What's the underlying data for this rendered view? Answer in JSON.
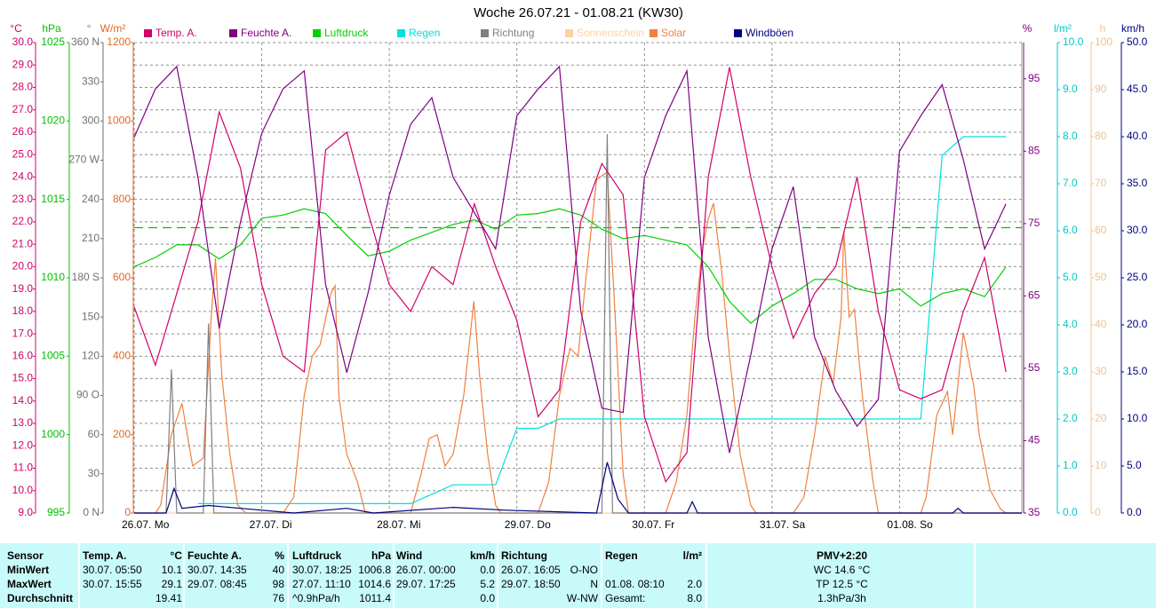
{
  "chart_data": {
    "type": "line",
    "title": "Woche 26.07.21 - 01.08.21 (KW30)",
    "xlim": [
      0,
      167
    ],
    "xticks": [
      {
        "value": 0,
        "label": "26.07. Mo"
      },
      {
        "value": 24,
        "label": "27.07. Di"
      },
      {
        "value": 48,
        "label": "28.07. Mi"
      },
      {
        "value": 72,
        "label": "29.07. Do"
      },
      {
        "value": 96,
        "label": "30.07. Fr"
      },
      {
        "value": 120,
        "label": "31.07. Sa"
      },
      {
        "value": 144,
        "label": "01.08. So"
      }
    ],
    "grid": true,
    "axes": [
      {
        "label": "°C",
        "side": "left",
        "color": "#d0006a",
        "lim": [
          9,
          30
        ],
        "ticks": [
          {
            "value": 9,
            "label": "9.0"
          },
          {
            "value": 10,
            "label": "10.0"
          },
          {
            "value": 11,
            "label": "11.0"
          },
          {
            "value": 12,
            "label": "12.0"
          },
          {
            "value": 13,
            "label": "13.0"
          },
          {
            "value": 14,
            "label": "14.0"
          },
          {
            "value": 15,
            "label": "15.0"
          },
          {
            "value": 16,
            "label": "16.0"
          },
          {
            "value": 17,
            "label": "17.0"
          },
          {
            "value": 18,
            "label": "18.0"
          },
          {
            "value": 19,
            "label": "19.0"
          },
          {
            "value": 20,
            "label": "20.0"
          },
          {
            "value": 21,
            "label": "21.0"
          },
          {
            "value": 22,
            "label": "22.0"
          },
          {
            "value": 23,
            "label": "23.0"
          },
          {
            "value": 24,
            "label": "24.0"
          },
          {
            "value": 25,
            "label": "25.0"
          },
          {
            "value": 26,
            "label": "26.0"
          },
          {
            "value": 27,
            "label": "27.0"
          },
          {
            "value": 28,
            "label": "28.0"
          },
          {
            "value": 29,
            "label": "29.0"
          },
          {
            "value": 30,
            "label": "30.0"
          }
        ]
      },
      {
        "label": "hPa",
        "side": "left",
        "color": "#00c000",
        "lim": [
          995,
          1025
        ],
        "ticks": [
          995,
          1000,
          1005,
          1010,
          1015,
          1020,
          1025
        ]
      },
      {
        "label": "°",
        "side": "left",
        "color": "#707070",
        "lim": [
          0,
          360
        ],
        "ticks": [
          {
            "value": 0,
            "label": "0 N"
          },
          30,
          60,
          {
            "value": 90,
            "label": "90 O"
          },
          120,
          150,
          {
            "value": 180,
            "label": "180 S"
          },
          210,
          240,
          {
            "value": 270,
            "label": "270 W"
          },
          300,
          330,
          {
            "value": 360,
            "label": "360 N"
          }
        ]
      },
      {
        "label": "W/m²",
        "side": "left",
        "color": "#e06820",
        "lim": [
          0,
          1200
        ],
        "ticks": [
          0,
          200,
          400,
          600,
          800,
          1000,
          1200
        ]
      },
      {
        "label": "%",
        "side": "right",
        "color": "#800080",
        "lim": [
          35,
          100
        ],
        "ticks": [
          35,
          45,
          55,
          65,
          75,
          85,
          95
        ]
      },
      {
        "label": "l/m²",
        "side": "right",
        "color": "#00c8c8",
        "lim": [
          0,
          10
        ],
        "ticks": [
          {
            "value": 0,
            "label": "0.0"
          },
          {
            "value": 1,
            "label": "1.0"
          },
          {
            "value": 2,
            "label": "2.0"
          },
          {
            "value": 3,
            "label": "3.0"
          },
          {
            "value": 4,
            "label": "4.0"
          },
          {
            "value": 5,
            "label": "5.0"
          },
          {
            "value": 6,
            "label": "6.0"
          },
          {
            "value": 7,
            "label": "7.0"
          },
          {
            "value": 8,
            "label": "8.0"
          },
          {
            "value": 9,
            "label": "9.0"
          },
          {
            "value": 10,
            "label": "10.0"
          }
        ]
      },
      {
        "label": "h",
        "side": "right",
        "color": "#f0c090",
        "lim": [
          0,
          100
        ],
        "ticks": [
          0,
          10,
          20,
          30,
          40,
          50,
          60,
          70,
          80,
          90,
          100
        ]
      },
      {
        "label": "km/h",
        "side": "right",
        "color": "#000080",
        "lim": [
          0,
          50
        ],
        "ticks": [
          {
            "value": 0,
            "label": "0.0"
          },
          {
            "value": 5,
            "label": "5.0"
          },
          {
            "value": 10,
            "label": "10.0"
          },
          {
            "value": 15,
            "label": "15.0"
          },
          {
            "value": 20,
            "label": "20.0"
          },
          {
            "value": 25,
            "label": "25.0"
          },
          {
            "value": 30,
            "label": "30.0"
          },
          {
            "value": 35,
            "label": "35.0"
          },
          {
            "value": 40,
            "label": "40.0"
          },
          {
            "value": 45,
            "label": "45.0"
          },
          {
            "value": 50,
            "label": "50.0"
          }
        ]
      }
    ],
    "reference_line": {
      "axis": "hPa",
      "value": 1013.2,
      "color": "#00c000"
    },
    "x": [
      0,
      4,
      8,
      12,
      16,
      20,
      24,
      28,
      32,
      36,
      40,
      44,
      48,
      52,
      56,
      60,
      64,
      68,
      72,
      76,
      80,
      84,
      88,
      92,
      96,
      100,
      104,
      108,
      112,
      116,
      120,
      124,
      128,
      132,
      136,
      140,
      144,
      148,
      152,
      156,
      160,
      164
    ],
    "series": [
      {
        "name": "Temp. A.",
        "color": "#d0006a",
        "axis": "°C",
        "values": [
          18.2,
          15.6,
          18.8,
          22.0,
          26.9,
          24.4,
          19.2,
          16.0,
          15.3,
          25.2,
          26.0,
          22.4,
          19.2,
          18.0,
          20.0,
          19.2,
          22.8,
          20.0,
          17.6,
          13.3,
          14.5,
          22.0,
          24.6,
          23.2,
          13.3,
          10.4,
          11.7,
          24.0,
          28.9,
          24.0,
          20.0,
          16.8,
          18.8,
          20.0,
          24.0,
          18.0,
          14.5,
          14.1,
          14.5,
          18.0,
          20.4,
          15.3
        ]
      },
      {
        "name": "Feuchte A.",
        "color": "#800080",
        "axis": "%",
        "values": [
          86.9,
          93.6,
          96.7,
          81.4,
          60.5,
          75.2,
          87.5,
          93.6,
          96.1,
          66.6,
          54.4,
          65.4,
          78.9,
          88.7,
          92.4,
          81.4,
          76.5,
          71.5,
          89.9,
          93.6,
          96.7,
          63.0,
          49.5,
          48.9,
          81.4,
          89.9,
          96.1,
          59.3,
          43.3,
          56.8,
          71.5,
          80.1,
          59.3,
          51.9,
          47.0,
          50.7,
          85.0,
          89.9,
          94.2,
          83.8,
          71.5,
          77.7
        ]
      },
      {
        "name": "Luftdruck",
        "color": "#00d000",
        "axis": "hPa",
        "values": [
          1010.7,
          1011.3,
          1012.1,
          1012.1,
          1011.2,
          1012.1,
          1013.8,
          1014.0,
          1014.4,
          1014.1,
          1012.7,
          1011.4,
          1011.7,
          1012.4,
          1012.9,
          1013.4,
          1013.7,
          1013.1,
          1014.0,
          1014.1,
          1014.4,
          1014.0,
          1013.1,
          1012.5,
          1012.7,
          1012.4,
          1012.1,
          1010.7,
          1008.5,
          1007.1,
          1008.2,
          1009.0,
          1009.9,
          1009.9,
          1009.3,
          1009.0,
          1009.3,
          1008.2,
          1009.0,
          1009.3,
          1008.8,
          1010.7
        ]
      },
      {
        "name": "Regen",
        "color": "#00e0e0",
        "axis": "l/m²",
        "values": [
          null,
          null,
          null,
          0.2,
          0.2,
          0.2,
          0.2,
          0.2,
          0.2,
          0.2,
          0.2,
          0.2,
          0.2,
          0.2,
          0.4,
          0.6,
          0.6,
          0.6,
          1.8,
          1.8,
          2.0,
          2.0,
          2.0,
          2.0,
          2.0,
          2.0,
          2.0,
          2.0,
          2.0,
          2.0,
          2.0,
          2.0,
          2.0,
          2.0,
          2.0,
          2.0,
          2.0,
          2.0,
          7.6,
          8.0,
          8.0,
          8.0
        ]
      },
      {
        "name": "Richtung",
        "color": "#808080",
        "axis": "°",
        "x": [
          0,
          6,
          7,
          8,
          13,
          14,
          15,
          88,
          89,
          90,
          167
        ],
        "values": [
          0,
          0,
          110,
          0,
          0,
          145,
          0,
          0,
          290,
          0,
          0
        ]
      },
      {
        "name": "Sonnenschein",
        "color": "#ffd0a0",
        "axis": "h",
        "x": [
          0,
          167
        ],
        "values": [
          0,
          0
        ]
      },
      {
        "name": "Solar",
        "color": "#f08040",
        "axis": "W/m²",
        "x": [
          0,
          4,
          5,
          7,
          9,
          11,
          13,
          14.5,
          15.3,
          16.5,
          18,
          19.5,
          21,
          28,
          30,
          32,
          33.5,
          35,
          37,
          37.8,
          38.5,
          40,
          42,
          43.5,
          52,
          54,
          55.5,
          57,
          58.5,
          60,
          62,
          63.9,
          65,
          66.5,
          68,
          69,
          76,
          78,
          80,
          82,
          83.5,
          85,
          87,
          89,
          90.5,
          92,
          93,
          100,
          102,
          104,
          105.5,
          107,
          108,
          109,
          110.5,
          112,
          114,
          116,
          117,
          124,
          126,
          128,
          130,
          131.5,
          133,
          133.5,
          134.5,
          135.5,
          137,
          139,
          140,
          148,
          149,
          151,
          153,
          154,
          156,
          158,
          159,
          161,
          163,
          164,
          167
        ],
        "values": [
          0,
          0,
          20,
          200,
          280,
          120,
          140,
          500,
          650,
          350,
          150,
          20,
          0,
          0,
          40,
          300,
          400,
          430,
          560,
          580,
          300,
          150,
          80,
          0,
          0,
          100,
          190,
          200,
          120,
          150,
          300,
          540,
          350,
          150,
          20,
          0,
          0,
          80,
          300,
          420,
          400,
          600,
          850,
          870,
          500,
          100,
          0,
          0,
          80,
          250,
          500,
          680,
          750,
          790,
          620,
          400,
          150,
          20,
          0,
          0,
          40,
          200,
          400,
          330,
          500,
          720,
          500,
          520,
          300,
          80,
          0,
          0,
          40,
          250,
          310,
          200,
          460,
          320,
          200,
          60,
          10,
          0,
          0
        ]
      },
      {
        "name": "Windböen",
        "color": "#000080",
        "axis": "km/h",
        "x": [
          0,
          6,
          7.5,
          9,
          14,
          20,
          30,
          40,
          45,
          60,
          70,
          87,
          89,
          91,
          93,
          104,
          105,
          106,
          154,
          155,
          156,
          167
        ],
        "values": [
          0,
          0,
          2.6,
          0.5,
          0.8,
          0.5,
          0,
          0.5,
          0,
          0.6,
          0.3,
          0,
          5.4,
          1.5,
          0,
          0,
          1.2,
          0,
          0,
          0.5,
          0,
          0
        ]
      }
    ]
  },
  "table": {
    "row_header": "Sensor",
    "row_labels": [
      "MinWert",
      "MaxWert",
      "Durchschnitt"
    ],
    "columns": [
      {
        "title": "Temp. A.",
        "unit": "°C",
        "min": {
          "time": "30.07.  05:50",
          "value": "10.1"
        },
        "max": {
          "time": "30.07.  15:55",
          "value": "29.1"
        },
        "avg": {
          "value": "19.41"
        }
      },
      {
        "title": "Feuchte A.",
        "unit": "%",
        "min": {
          "time": "30.07.  14:35",
          "value": "40"
        },
        "max": {
          "time": "29.07.  08:45",
          "value": "98"
        },
        "avg": {
          "value": "76"
        }
      },
      {
        "title": "Luftdruck",
        "unit": "hPa",
        "min": {
          "time": "30.07.  18:25",
          "value": "1006.8"
        },
        "max": {
          "time": "27.07.  11:10",
          "value": "1014.6"
        },
        "avg": {
          "note": "^0.9hPa/h",
          "value": "1011.4"
        }
      },
      {
        "title": "Wind",
        "unit": "km/h",
        "min": {
          "time": "26.07.  00:00",
          "value": "0.0"
        },
        "max": {
          "time": "29.07.  17:25",
          "value": "5.2"
        },
        "avg": {
          "value": "0.0"
        }
      },
      {
        "title": "Richtung",
        "min": {
          "time": "26.07.  16:05",
          "value": "O-NO"
        },
        "max": {
          "time": "29.07.  18:50",
          "value": "N"
        },
        "avg": {
          "value": "W-NW"
        }
      },
      {
        "title": "Regen",
        "unit": "l/m²",
        "max": {
          "time": "01.08.  08:10",
          "value": "2.0"
        },
        "avg": {
          "note": "Gesamt:",
          "value": "8.0"
        }
      },
      {
        "title": "PMV+2:20",
        "min": {
          "value": "WC 14.6 °C"
        },
        "max": {
          "value": "TP 12.5 °C"
        },
        "avg": {
          "value": "1.3hPa/3h"
        }
      }
    ]
  }
}
